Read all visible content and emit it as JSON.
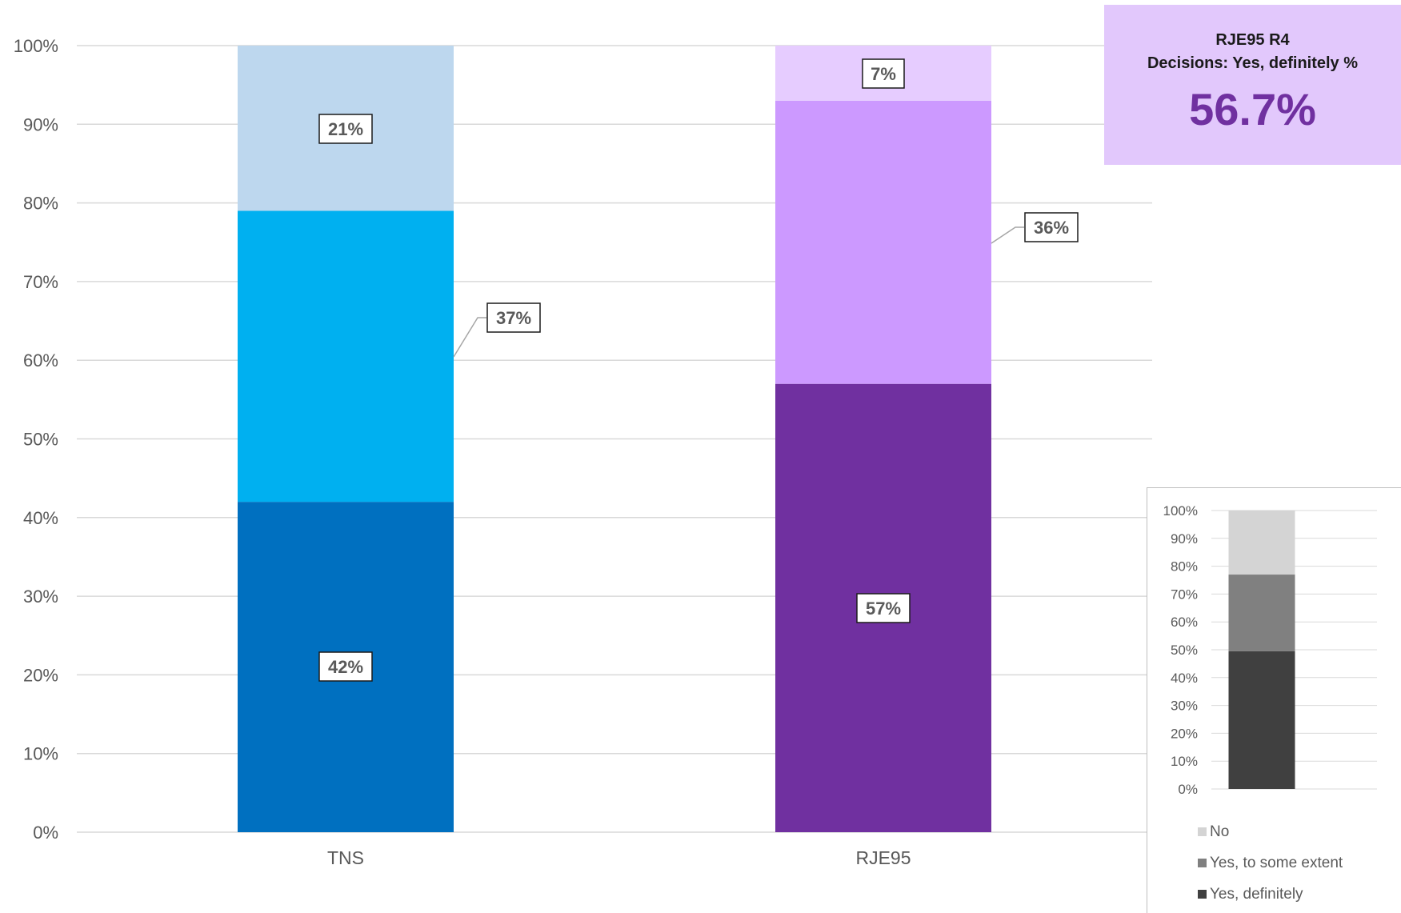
{
  "chart_data": [
    {
      "type": "bar",
      "stacked": true,
      "categories": [
        "TNS",
        "RJE95"
      ],
      "series_order": [
        "Yes, definitely",
        "Yes, to some extent",
        "No"
      ],
      "values": {
        "TNS": [
          42,
          37,
          21
        ],
        "RJE95": [
          57,
          36,
          7
        ]
      },
      "colors": {
        "TNS": [
          "#0070c0",
          "#00b0f0",
          "#bdd7ee"
        ],
        "RJE95": [
          "#7030a0",
          "#cc99ff",
          "#e6ccff"
        ]
      },
      "labels": {
        "TNS": [
          "42%",
          "37%",
          "21%"
        ],
        "RJE95": [
          "57%",
          "36%",
          "7%"
        ]
      },
      "ylim": [
        0,
        100
      ],
      "yticks": [
        "0%",
        "10%",
        "20%",
        "30%",
        "40%",
        "50%",
        "60%",
        "70%",
        "80%",
        "90%",
        "100%"
      ],
      "grid": true
    },
    {
      "type": "bar",
      "stacked": true,
      "role": "legend-key",
      "series": [
        {
          "name": "Yes, definitely",
          "values": [
            49.5
          ],
          "color": "#404040"
        },
        {
          "name": "Yes, to some extent",
          "values": [
            27.5
          ],
          "color": "#808080"
        },
        {
          "name": "No",
          "values": [
            23
          ],
          "color": "#d4d4d4"
        }
      ],
      "ylim": [
        0,
        100
      ],
      "yticks": [
        "0%",
        "10%",
        "20%",
        "30%",
        "40%",
        "50%",
        "60%",
        "70%",
        "80%",
        "90%",
        "100%"
      ],
      "legend_order": [
        {
          "name": "No",
          "color": "#d4d4d4"
        },
        {
          "name": "Yes, to some extent",
          "color": "#808080"
        },
        {
          "name": "Yes, definitely",
          "color": "#404040"
        }
      ],
      "grid": true
    }
  ],
  "callout": {
    "title_line1": "RJE95 R4",
    "title_line2": "Decisions: Yes, definitely %",
    "value": "56.7%"
  }
}
